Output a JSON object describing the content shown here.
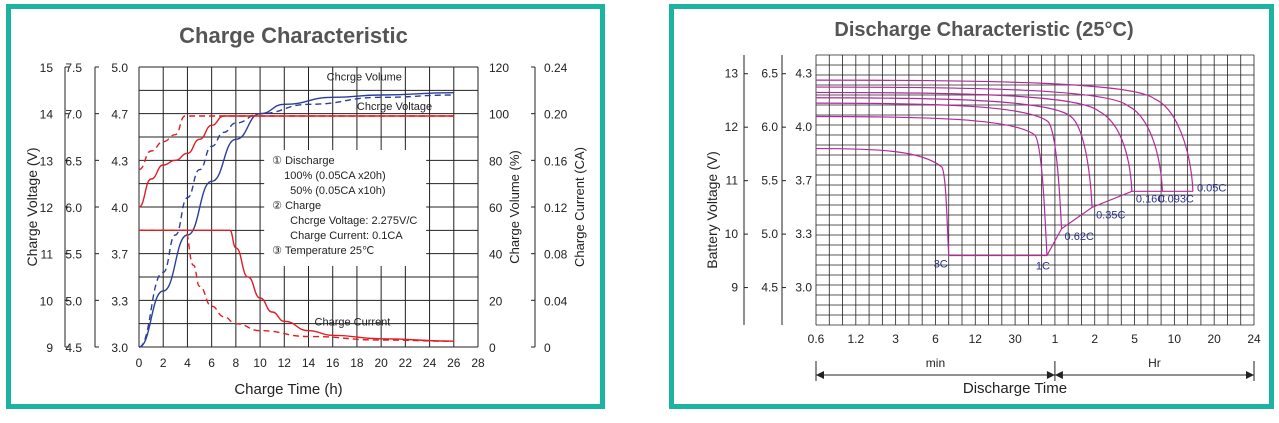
{
  "chart_data": [
    {
      "type": "line",
      "title": "Charge Characteristic",
      "xlabel": "Charge Time (h)",
      "x_ticks": [
        "0",
        "2",
        "4",
        "6",
        "8",
        "10",
        "12",
        "14",
        "16",
        "18",
        "20",
        "22",
        "24",
        "26",
        "28"
      ],
      "xlim": [
        0,
        28
      ],
      "left_axes": [
        {
          "ticks": [
            "15",
            "14",
            "13",
            "12",
            "11",
            "10",
            "9"
          ],
          "values": [
            15,
            14,
            13,
            12,
            11,
            10,
            9
          ]
        },
        {
          "ticks": [
            "7.5",
            "7.0",
            "6.5",
            "6.0",
            "5.5",
            "5.0",
            "4.5"
          ],
          "values": [
            7.5,
            7.0,
            6.5,
            6.0,
            5.5,
            5.0,
            4.5
          ]
        },
        {
          "ticks": [
            "5.0",
            "4.7",
            "4.3",
            "4.0",
            "3.7",
            "3.3",
            "3.0"
          ],
          "values": [
            5.0,
            4.7,
            4.3,
            4.0,
            3.7,
            3.3,
            3.0
          ]
        }
      ],
      "ylabel_left": "Charge Voltage (V)",
      "right_axes": [
        {
          "ticks": [
            "120",
            "100",
            "80",
            "60",
            "40",
            "20",
            "0"
          ],
          "values": [
            120,
            100,
            80,
            60,
            40,
            20,
            0
          ]
        },
        {
          "ticks": [
            "0.24",
            "0.20",
            "0.16",
            "0.12",
            "0.08",
            "0.04",
            "0"
          ],
          "values": [
            0.24,
            0.2,
            0.16,
            0.12,
            0.08,
            0.04,
            0
          ]
        }
      ],
      "ylabel_right_1": "Charge Volume (%)",
      "ylabel_right_2": "Charge Current (CA)",
      "grid": true,
      "series": [
        {
          "name": "Chcrge Volume",
          "axis": "volume",
          "style": "solid",
          "color": "#2b3f9a",
          "points": [
            [
              0,
              0
            ],
            [
              2,
              24
            ],
            [
              4,
              48
            ],
            [
              6,
              71
            ],
            [
              8,
              89
            ],
            [
              10,
              100
            ],
            [
              12,
              104
            ],
            [
              16,
              107
            ],
            [
              20,
              108
            ],
            [
              26,
              109
            ]
          ]
        },
        {
          "name": "Chcrge Volume",
          "axis": "volume",
          "style": "dashed",
          "color": "#2b3f9a",
          "points": [
            [
              0,
              0
            ],
            [
              2,
              32
            ],
            [
              3,
              48
            ],
            [
              4,
              64
            ],
            [
              5,
              76
            ],
            [
              6,
              86
            ],
            [
              7,
              92
            ],
            [
              8,
              96
            ],
            [
              10,
              100
            ],
            [
              14,
              104
            ],
            [
              20,
              107
            ],
            [
              26,
              108
            ]
          ]
        },
        {
          "name": "Chcrge Voltage",
          "axis": "voltage",
          "style": "solid",
          "color": "#e11d23",
          "points": [
            [
              0,
              12.0
            ],
            [
              1,
              12.6
            ],
            [
              2,
              12.9
            ],
            [
              3,
              13.0
            ],
            [
              4,
              13.15
            ],
            [
              5,
              13.45
            ],
            [
              6,
              13.75
            ],
            [
              7,
              13.95
            ],
            [
              7.5,
              13.95
            ],
            [
              26,
              13.95
            ]
          ]
        },
        {
          "name": "Chcrge Voltage",
          "axis": "voltage",
          "style": "dashed",
          "color": "#e11d23",
          "points": [
            [
              0,
              12.8
            ],
            [
              1,
              13.2
            ],
            [
              2,
              13.4
            ],
            [
              3,
              13.55
            ],
            [
              3.8,
              13.95
            ],
            [
              26,
              13.95
            ]
          ]
        },
        {
          "name": "Charge Current",
          "axis": "current",
          "style": "solid",
          "color": "#e11d23",
          "points": [
            [
              0,
              0.1
            ],
            [
              7.5,
              0.1
            ],
            [
              8,
              0.085
            ],
            [
              9,
              0.06
            ],
            [
              10,
              0.042
            ],
            [
              11,
              0.03
            ],
            [
              12,
              0.022
            ],
            [
              14,
              0.014
            ],
            [
              16,
              0.01
            ],
            [
              20,
              0.007
            ],
            [
              26,
              0.005
            ]
          ]
        },
        {
          "name": "Charge Current",
          "axis": "current",
          "style": "dashed",
          "color": "#e11d23",
          "points": [
            [
              0,
              0.1
            ],
            [
              3.8,
              0.1
            ],
            [
              4.5,
              0.07
            ],
            [
              5,
              0.052
            ],
            [
              6,
              0.035
            ],
            [
              7,
              0.026
            ],
            [
              8,
              0.02
            ],
            [
              10,
              0.014
            ],
            [
              14,
              0.009
            ],
            [
              20,
              0.006
            ],
            [
              26,
              0.005
            ]
          ]
        }
      ],
      "annotations": {
        "volume_label": "Chcrge Volume",
        "voltage_label": "Chcrge Voltage",
        "current_label": "Charge Current",
        "legend_lines": [
          "①   Discharge",
          "100%  (0.05CA x20h)",
          "50%  (0.05CA x10h)",
          "②   Charge",
          "Chcrge Voltage: 2.275V/C",
          "Charge Current: 0.1CA",
          "③   Temperature 25℃"
        ]
      },
      "colors": {
        "blue": "#2b3f9a",
        "red": "#e11d23",
        "frame": "#1cb3a3"
      }
    },
    {
      "type": "line",
      "title": "Discharge Characteristic (25°C)",
      "xlabel": "Discharge Time",
      "x_ticks": [
        "0.6",
        "1.2",
        "3",
        "6",
        "12",
        "30",
        "1",
        "2",
        "5",
        "10",
        "20",
        "24"
      ],
      "x_unit_min": "min",
      "x_unit_hr": "Hr",
      "ylabel": "Battery Voltage (V)",
      "left_axes": [
        {
          "ticks": [
            "13",
            "12",
            "11",
            "10",
            "9"
          ],
          "values": [
            13,
            12,
            11,
            10,
            9
          ]
        },
        {
          "ticks": [
            "6.5",
            "6.0",
            "5.5",
            "5.0",
            "4.5"
          ],
          "values": [
            6.5,
            6.0,
            5.5,
            5.0,
            4.5
          ]
        },
        {
          "ticks": [
            "4.3",
            "4.0",
            "3.7",
            "3.3",
            "3.0"
          ],
          "values": [
            4.3,
            4.0,
            3.7,
            3.3,
            3.0
          ]
        }
      ],
      "grid": true,
      "color": "#b5289a",
      "label_color": "#2a2f8f",
      "series": [
        {
          "name": "3C",
          "start_v": 11.6,
          "knee_x": 9.5,
          "end_x": 10,
          "end_v": 9.6
        },
        {
          "name": "1C",
          "start_v": 12.2,
          "knee_x": 16.5,
          "end_x": 17.4,
          "end_v": 9.6
        },
        {
          "name": "0.62C",
          "start_v": 12.45,
          "knee_x": 17.5,
          "end_x": 18.5,
          "end_v": 10.1
        },
        {
          "name": "0.35C",
          "start_v": 12.55,
          "knee_x": 19.2,
          "end_x": 20.8,
          "end_v": 10.5
        },
        {
          "name": "0.16C",
          "start_v": 12.65,
          "knee_x": 21.3,
          "end_x": 23.8,
          "end_v": 10.8
        },
        {
          "name": "0.093C",
          "start_v": 12.75,
          "knee_x": 23.5,
          "end_x": 26.1,
          "end_v": 10.8
        },
        {
          "name": "0.05C",
          "start_v": 12.88,
          "knee_x": 25.5,
          "end_x": 28.4,
          "end_v": 10.8
        }
      ]
    }
  ]
}
